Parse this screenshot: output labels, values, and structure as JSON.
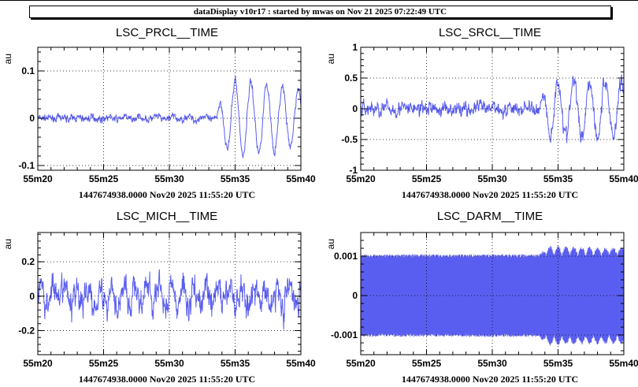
{
  "header": {
    "title": "dataDisplay v10r17 : started by mwas on Nov 21 2025 07:22:49 UTC"
  },
  "colors": {
    "trace": "#5a5ef0",
    "grid": "#000000"
  },
  "chart_data": [
    {
      "type": "line",
      "title": "LSC_PRCL__TIME",
      "ylabel": "au",
      "xlabel": "1447674938.0000 Nov20 2025 11:55:20 UTC",
      "x_ticks": [
        "55m20",
        "55m25",
        "55m30",
        "55m35",
        "55m40"
      ],
      "x_range_minutes": [
        20,
        40
      ],
      "ylim": [
        -0.11,
        0.15
      ],
      "y_ticks": [
        {
          "value": 0.1,
          "label": "0.1"
        },
        {
          "value": 0,
          "label": "0"
        },
        {
          "value": -0.1,
          "label": "-0.1"
        }
      ],
      "grid": true,
      "series": [
        {
          "style": "noise",
          "envelope": [
            {
              "x": 20,
              "amp": 0.015,
              "osc_amp": 0.0,
              "period": 1.2
            },
            {
              "x": 33.5,
              "amp": 0.015,
              "osc_amp": 0.005,
              "period": 1.2
            },
            {
              "x": 34.2,
              "amp": 0.02,
              "osc_amp": 0.06,
              "period": 1.2
            },
            {
              "x": 35,
              "amp": 0.02,
              "osc_amp": 0.08,
              "period": 1.2
            },
            {
              "x": 40,
              "amp": 0.02,
              "osc_amp": 0.06,
              "period": 1.2
            }
          ]
        }
      ]
    },
    {
      "type": "line",
      "title": "LSC_SRCL__TIME",
      "ylabel": "au",
      "xlabel": "1447674938.0000 Nov20 2025 11:55:20 UTC",
      "x_ticks": [
        "55m20",
        "55m25",
        "55m30",
        "55m35",
        "55m40"
      ],
      "x_range_minutes": [
        20,
        40
      ],
      "ylim": [
        -1,
        1
      ],
      "y_ticks": [
        {
          "value": 1,
          "label": "1"
        },
        {
          "value": 0.5,
          "label": "0.5"
        },
        {
          "value": 0,
          "label": "0"
        },
        {
          "value": -0.5,
          "label": "-0.5"
        },
        {
          "value": -1,
          "label": "-1"
        }
      ],
      "grid": true,
      "series": [
        {
          "style": "noise",
          "envelope": [
            {
              "x": 20,
              "amp": 0.25,
              "osc_amp": 0.0,
              "period": 1.2
            },
            {
              "x": 33.5,
              "amp": 0.25,
              "osc_amp": 0.05,
              "period": 1.2
            },
            {
              "x": 34.3,
              "amp": 0.3,
              "osc_amp": 0.45,
              "period": 1.2
            },
            {
              "x": 40,
              "amp": 0.3,
              "osc_amp": 0.45,
              "period": 1.2
            }
          ]
        }
      ]
    },
    {
      "type": "line",
      "title": "LSC_MICH__TIME",
      "ylabel": "au",
      "xlabel": "1447674938.0000 Nov20 2025 11:55:20 UTC",
      "x_ticks": [
        "55m20",
        "55m25",
        "55m30",
        "55m35",
        "55m40"
      ],
      "x_range_minutes": [
        20,
        40
      ],
      "ylim": [
        -0.34,
        0.37
      ],
      "y_ticks": [
        {
          "value": 0.2,
          "label": "0.2"
        },
        {
          "value": 0,
          "label": "0"
        },
        {
          "value": -0.2,
          "label": "-0.2"
        }
      ],
      "grid": true,
      "series": [
        {
          "style": "noise",
          "envelope": [
            {
              "x": 20,
              "amp": 0.18,
              "osc_amp": 0.06,
              "period": 0.9
            },
            {
              "x": 40,
              "amp": 0.18,
              "osc_amp": 0.06,
              "period": 0.9
            }
          ]
        }
      ]
    },
    {
      "type": "line",
      "title": "LSC_DARM__TIME",
      "ylabel": "au",
      "xlabel": "1447674938.0000 Nov20 2025 11:55:20 UTC",
      "x_ticks": [
        "55m20",
        "55m25",
        "55m30",
        "55m35",
        "55m40"
      ],
      "x_range_minutes": [
        20,
        40
      ],
      "ylim": [
        -0.0015,
        0.0016
      ],
      "y_ticks": [
        {
          "value": 0.001,
          "label": "0.001"
        },
        {
          "value": 0,
          "label": "0"
        },
        {
          "value": -0.001,
          "label": "-0.001"
        }
      ],
      "grid": true,
      "series": [
        {
          "style": "band",
          "envelope": [
            {
              "x": 20,
              "amp": 0.00105,
              "osc_amp": 0.0,
              "period": 1.2
            },
            {
              "x": 33.5,
              "amp": 0.00105,
              "osc_amp": 0.0,
              "period": 1.2
            },
            {
              "x": 34.3,
              "amp": 0.00105,
              "osc_amp": 0.00022,
              "period": 1.2
            },
            {
              "x": 40,
              "amp": 0.00105,
              "osc_amp": 0.00018,
              "period": 1.2
            }
          ]
        }
      ]
    }
  ]
}
